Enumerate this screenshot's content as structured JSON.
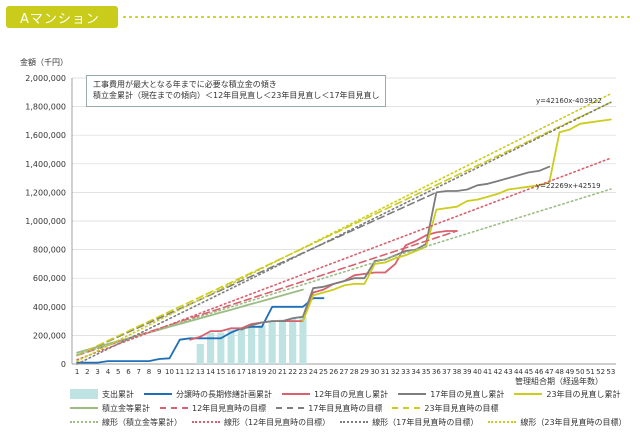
{
  "header": {
    "title": "Aマンション"
  },
  "note": {
    "line1": "工事費用が最大となる年までに必要な積立金の傾き",
    "line2": "積立金累計（現在までの傾向）＜12年目見直し＜23年目見直し＜17年目見直し"
  },
  "chart_data": {
    "type": "line",
    "ylabel": "金額（千円）",
    "xlabel": "管理組合期（経過年数）",
    "ylim": [
      0,
      2000000
    ],
    "yticks": [
      "0",
      "200,000",
      "400,000",
      "600,000",
      "800,000",
      "1,000,000",
      "1,200,000",
      "1,400,000",
      "1,600,000",
      "1,800,000",
      "2,000,000"
    ],
    "x": [
      1,
      2,
      3,
      4,
      5,
      6,
      7,
      8,
      9,
      10,
      11,
      12,
      13,
      14,
      15,
      16,
      17,
      18,
      19,
      20,
      21,
      22,
      23,
      24,
      25,
      26,
      27,
      28,
      29,
      30,
      31,
      32,
      33,
      34,
      35,
      36,
      37,
      38,
      39,
      40,
      41,
      42,
      43,
      44,
      45,
      46,
      47,
      48,
      49,
      50,
      51,
      52,
      53
    ],
    "annotations": [
      "y=42160x-403922",
      "y=22269x+42519"
    ],
    "bars": {
      "name": "支出累計",
      "color": "#bfe3e3",
      "x": [
        13,
        14,
        15,
        16,
        17,
        18,
        19,
        20,
        21,
        22,
        23
      ],
      "values": [
        140000,
        220000,
        220000,
        240000,
        250000,
        260000,
        270000,
        300000,
        310000,
        320000,
        330000
      ]
    },
    "series": [
      {
        "name": "分譲時の長期修繕計画累計",
        "color": "#1f6fb8",
        "style": "solid",
        "x": [
          1,
          2,
          3,
          4,
          5,
          6,
          7,
          8,
          9,
          10,
          11,
          12,
          13,
          14,
          15,
          16,
          17,
          18,
          19,
          20,
          21,
          22,
          23,
          24,
          25
        ],
        "values": [
          10000,
          10000,
          10000,
          20000,
          20000,
          20000,
          20000,
          20000,
          35000,
          40000,
          170000,
          180000,
          180000,
          180000,
          180000,
          220000,
          250000,
          260000,
          260000,
          400000,
          400000,
          400000,
          400000,
          460000,
          460000
        ]
      },
      {
        "name": "12年目見直し累計",
        "color": "#d9606d",
        "style": "solid",
        "x": [
          12,
          13,
          14,
          15,
          16,
          17,
          18,
          19,
          20,
          21,
          22,
          23,
          24,
          25,
          26,
          27,
          28,
          29,
          30,
          31,
          32,
          33,
          34,
          35,
          36,
          37,
          38
        ],
        "values": [
          170000,
          190000,
          230000,
          230000,
          250000,
          250000,
          280000,
          290000,
          300000,
          300000,
          300000,
          300000,
          500000,
          520000,
          560000,
          580000,
          620000,
          630000,
          640000,
          640000,
          700000,
          830000,
          860000,
          900000,
          920000,
          930000,
          930000
        ]
      },
      {
        "name": "17年目見直し累計",
        "color": "#7d7d7d",
        "style": "solid",
        "x": [
          17,
          18,
          19,
          20,
          21,
          22,
          23,
          24,
          25,
          26,
          27,
          28,
          29,
          30,
          31,
          32,
          33,
          34,
          35,
          36,
          37,
          38,
          39,
          40,
          41,
          42,
          43,
          44,
          45,
          46,
          47
        ],
        "values": [
          240000,
          270000,
          290000,
          300000,
          300000,
          320000,
          330000,
          530000,
          540000,
          560000,
          580000,
          600000,
          600000,
          720000,
          730000,
          760000,
          790000,
          800000,
          840000,
          1200000,
          1210000,
          1210000,
          1220000,
          1250000,
          1260000,
          1280000,
          1300000,
          1320000,
          1340000,
          1350000,
          1380000
        ]
      },
      {
        "name": "23年目の見直し累計",
        "color": "#cccc1d",
        "style": "solid",
        "x": [
          23,
          24,
          25,
          26,
          27,
          28,
          29,
          30,
          31,
          32,
          33,
          34,
          35,
          36,
          37,
          38,
          39,
          40,
          41,
          42,
          43,
          44,
          45,
          46,
          47,
          48,
          49,
          50,
          51,
          52,
          53
        ],
        "values": [
          300000,
          480000,
          500000,
          520000,
          550000,
          560000,
          560000,
          700000,
          710000,
          740000,
          760000,
          790000,
          820000,
          1080000,
          1090000,
          1100000,
          1140000,
          1150000,
          1170000,
          1190000,
          1220000,
          1230000,
          1240000,
          1250000,
          1270000,
          1620000,
          1640000,
          1680000,
          1690000,
          1700000,
          1710000
        ]
      },
      {
        "name": "積立金等累計",
        "color": "#9cbc84",
        "style": "solid",
        "x": [
          1,
          2,
          3,
          4,
          5,
          6,
          7,
          8,
          9,
          10,
          11,
          12,
          13,
          14,
          15,
          16,
          17,
          18,
          19,
          20,
          21,
          22,
          23
        ],
        "values": [
          80000,
          100000,
          120000,
          140000,
          160000,
          180000,
          200000,
          220000,
          240000,
          260000,
          280000,
          300000,
          320000,
          340000,
          360000,
          380000,
          400000,
          420000,
          440000,
          460000,
          480000,
          500000,
          520000
        ]
      },
      {
        "name": "12年目見直時の目標",
        "color": "#d9606d",
        "style": "dashed",
        "x": [
          1,
          38
        ],
        "values": [
          60000,
          930000
        ]
      },
      {
        "name": "17年目見直時の目標",
        "color": "#7d7d7d",
        "style": "dashed",
        "x": [
          1,
          36
        ],
        "values": [
          60000,
          1200000
        ]
      },
      {
        "name": "23年目見直時の目標",
        "color": "#cccc1d",
        "style": "dashed",
        "x": [
          1,
          53
        ],
        "values": [
          60000,
          1830000
        ]
      },
      {
        "name": "線形（積立金等累計）",
        "color": "#9cbc84",
        "style": "dotted",
        "x": [
          1,
          53
        ],
        "values": [
          64788,
          1222776
        ]
      },
      {
        "name": "線形（12年目見直時の目標）",
        "color": "#d9606d",
        "style": "dotted",
        "x": [
          1,
          53
        ],
        "values": [
          30000,
          1440000
        ]
      },
      {
        "name": "線形（17年目見直時の目標）",
        "color": "#7d7d7d",
        "style": "dotted",
        "x": [
          1,
          53
        ],
        "values": [
          0,
          1830000
        ]
      },
      {
        "name": "線形（23年目見直時の目標）",
        "color": "#cccc1d",
        "style": "dotted",
        "x": [
          1,
          53
        ],
        "values": [
          20000,
          1890000
        ]
      }
    ]
  },
  "legend": [
    [
      {
        "label": "支出累計",
        "swatch": "bar",
        "color": "#bfe3e3"
      },
      {
        "label": "分譲時の長期修繕計画累計",
        "swatch": "solid",
        "color": "#1f6fb8"
      },
      {
        "label": "12年目の見直し累計",
        "swatch": "solid",
        "color": "#d9606d"
      },
      {
        "label": "17年目の見直し累計",
        "swatch": "solid",
        "color": "#7d7d7d"
      },
      {
        "label": "23年目の見直し累計",
        "swatch": "solid",
        "color": "#cccc1d"
      }
    ],
    [
      {
        "label": "積立金等累計",
        "swatch": "solid",
        "color": "#9cbc84"
      },
      {
        "label": "12年目見直時の目標",
        "swatch": "dashed",
        "color": "#d9606d"
      },
      {
        "label": "17年目見直時の目標",
        "swatch": "dashed",
        "color": "#7d7d7d"
      },
      {
        "label": "23年目見直時の目標",
        "swatch": "dashed",
        "color": "#cccc1d"
      }
    ],
    [
      {
        "label": "線形（積立金等累計）",
        "swatch": "dotted",
        "color": "#9cbc84"
      },
      {
        "label": "線形（12年目見直時の目標）",
        "swatch": "dotted",
        "color": "#d9606d"
      },
      {
        "label": "線形（17年目見直時の目標）",
        "swatch": "dotted",
        "color": "#7d7d7d"
      },
      {
        "label": "線形（23年目見直時の目標）",
        "swatch": "dotted",
        "color": "#cccc1d"
      }
    ]
  ]
}
